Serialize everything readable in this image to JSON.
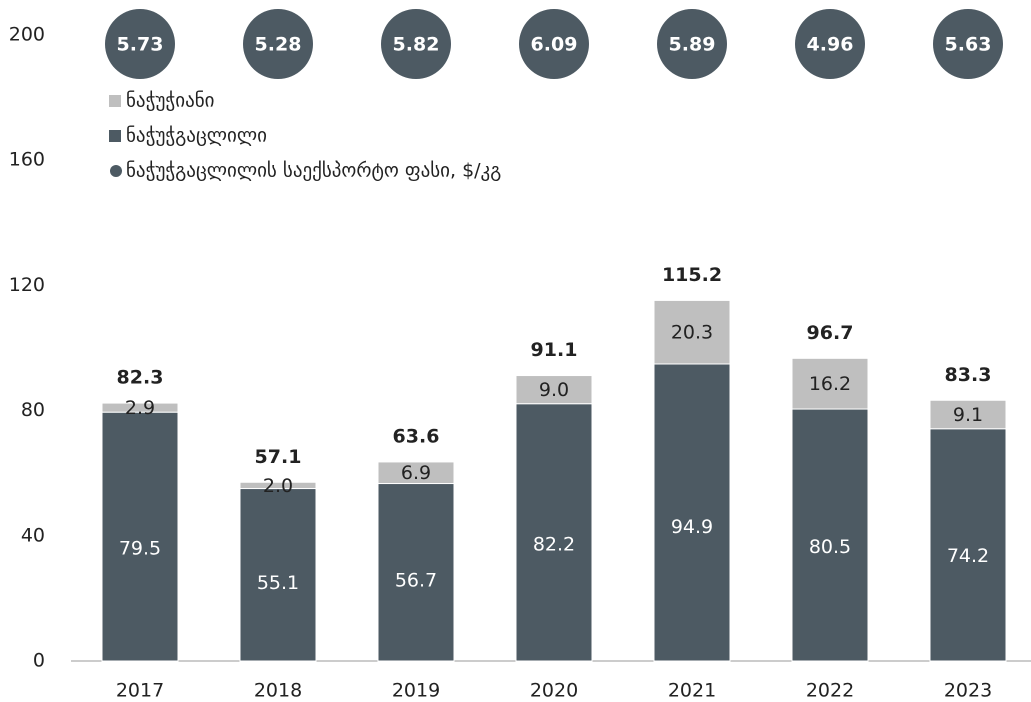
{
  "chart_data": {
    "type": "stacked-bar",
    "categories": [
      "2017",
      "2018",
      "2019",
      "2020",
      "2021",
      "2022",
      "2023"
    ],
    "series": [
      {
        "name": "ნაჭუჭგაცლილი",
        "color": "#4d5a63",
        "values": [
          79.5,
          55.1,
          56.7,
          82.2,
          94.9,
          80.5,
          74.2
        ]
      },
      {
        "name": "ნაჭუჭიანი",
        "color": "#bfbfbf",
        "values": [
          2.9,
          2.0,
          6.9,
          9.0,
          20.3,
          16.2,
          9.1
        ],
        "value_labels": [
          "2.9",
          "2.0",
          "6.9",
          "9.0",
          "20.3",
          "16.2",
          "9.1"
        ]
      }
    ],
    "totals": [
      82.3,
      57.1,
      63.6,
      91.1,
      115.2,
      96.7,
      83.3
    ],
    "price_series": {
      "name": "ნაჭუჭგაცლილის საექსპორტო ფასი, $/კგ",
      "color": "#4d5a63",
      "values": [
        5.73,
        5.28,
        5.82,
        6.09,
        5.89,
        4.96,
        5.63
      ]
    },
    "ylim": [
      0,
      200
    ],
    "yticks": [
      0,
      40,
      80,
      120,
      160,
      200
    ],
    "grid": false,
    "legend": "top-left"
  }
}
